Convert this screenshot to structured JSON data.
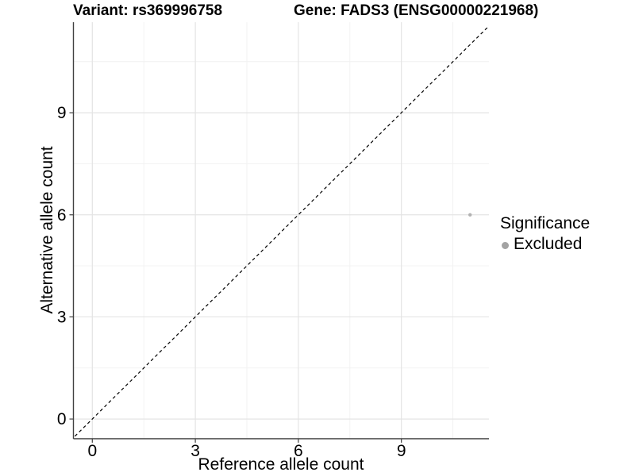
{
  "chart_data": {
    "type": "scatter",
    "title_left": "Variant: rs369996758",
    "title_right": "Gene: FADS3 (ENSG00000221968)",
    "xlabel": "Reference allele count",
    "ylabel": "Alternative allele count",
    "xlim": [
      -0.55,
      11.55
    ],
    "ylim": [
      -0.58,
      11.66
    ],
    "xticks": [
      0,
      3,
      6,
      9
    ],
    "yticks": [
      0,
      3,
      6,
      9
    ],
    "xminor": [
      1.5,
      4.5,
      7.5,
      10.5
    ],
    "yminor": [
      1.5,
      4.5,
      7.5,
      10.5
    ],
    "grid": "major+minor",
    "points": [
      {
        "x": 11,
        "y": 6,
        "series": "Excluded"
      }
    ],
    "reference_line": {
      "kind": "identity y=x",
      "style": "dashed",
      "color": "#000000"
    },
    "legend": {
      "position": "right",
      "title": "Significance",
      "items": [
        {
          "label": "Excluded",
          "color": "#a3a3a3"
        }
      ]
    },
    "colors": {
      "point": "#b2b2b2",
      "grid_major": "#e4e4e4",
      "grid_minor": "#f1f1f1",
      "axis": "#404040",
      "text": "#000000",
      "background": "#ffffff"
    }
  }
}
